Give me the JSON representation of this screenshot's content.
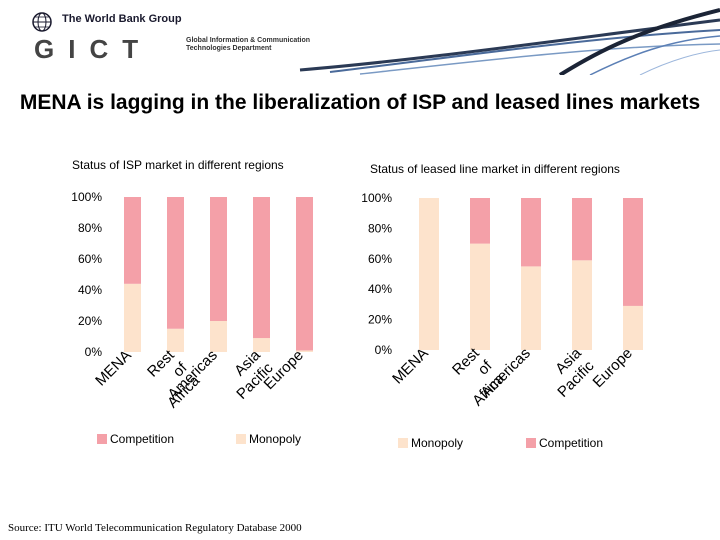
{
  "header": {
    "org_name": "The World Bank Group",
    "gict_letters": "GICT",
    "gict_subtitle": "Global Information & Communication Technologies Department"
  },
  "title": "MENA is lagging in the liberalization of ISP and leased lines markets",
  "source": "Source: ITU World Telecommunication Regulatory Database 2000",
  "colors": {
    "competition": "#f4a0a8",
    "monopoly": "#fde3cc",
    "axis": "#bbbbbb"
  },
  "chart_data": [
    {
      "type": "bar",
      "stacked": true,
      "percent": true,
      "title": "Status of ISP market in different regions",
      "categories": [
        "MENA",
        "Rest of Africa",
        "Americas",
        "Asia Pacific",
        "Europe"
      ],
      "y_ticks": [
        "0%",
        "20%",
        "40%",
        "60%",
        "80%",
        "100%"
      ],
      "ylim": [
        0,
        100
      ],
      "series": [
        {
          "name": "Monopoly",
          "values": [
            44,
            15,
            20,
            9,
            1
          ]
        },
        {
          "name": "Competition",
          "values": [
            56,
            85,
            80,
            91,
            99
          ]
        }
      ],
      "legend_order": [
        "Competition",
        "Monopoly"
      ]
    },
    {
      "type": "bar",
      "stacked": true,
      "percent": true,
      "title": "Status of leased line market in different regions",
      "categories": [
        "MENA",
        "Rest of Africa",
        "Americas",
        "Asia Pacific",
        "Europe"
      ],
      "y_ticks": [
        "0%",
        "20%",
        "40%",
        "60%",
        "80%",
        "100%"
      ],
      "ylim": [
        0,
        100
      ],
      "series": [
        {
          "name": "Monopoly",
          "values": [
            100,
            70,
            55,
            59,
            29
          ]
        },
        {
          "name": "Competition",
          "values": [
            0,
            30,
            45,
            41,
            71
          ]
        }
      ],
      "legend_order": [
        "Monopoly",
        "Competition"
      ]
    }
  ]
}
